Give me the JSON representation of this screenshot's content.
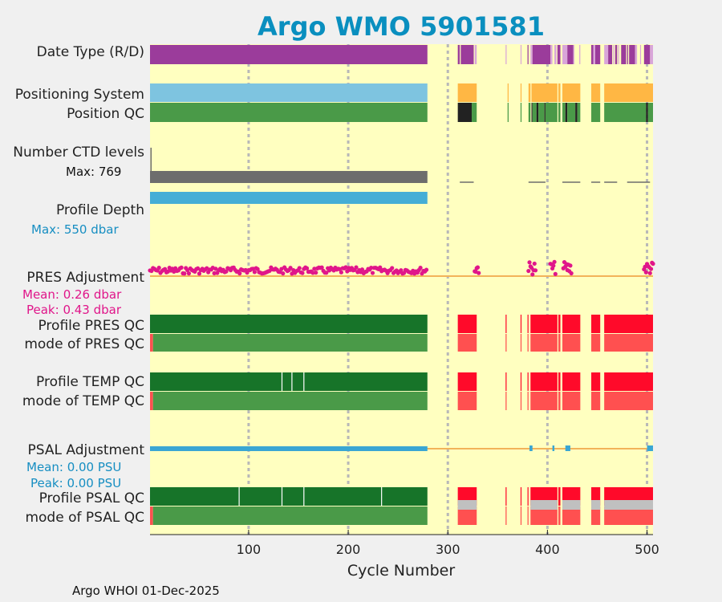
{
  "chart_data": {
    "type": "bar",
    "title": "Argo WMO 5901581",
    "xlabel": "Cycle Number",
    "xlim": [
      1,
      506
    ],
    "xticks": [
      100,
      200,
      300,
      400,
      500
    ],
    "footer": "Argo WHOI 01-Dec-2025",
    "row_labels": {
      "date_type": "Date Type (R/D)",
      "positioning_system": "Positioning System",
      "position_qc": "Position QC",
      "ctd_levels": "Number CTD levels",
      "profile_depth": "Profile Depth",
      "pres_adjustment": "PRES Adjustment",
      "profile_pres_qc": "Profile PRES QC",
      "mode_pres_qc": "mode of PRES QC",
      "profile_temp_qc": "Profile TEMP QC",
      "mode_temp_qc": "mode of TEMP QC",
      "psal_adjustment": "PSAL Adjustment",
      "profile_psal_qc": "Profile PSAL QC",
      "mode_psal_qc": "mode of PSAL QC"
    },
    "stats": {
      "ctd_max": "Max: 769",
      "depth_max": "Max:  550 dbar",
      "pres_mean": "Mean: 0.26 dbar",
      "pres_peak": "Peak: 0.43 dbar",
      "psal_mean": "Mean: 0.00 PSU",
      "psal_peak": "Peak: 0.00 PSU"
    },
    "colors": {
      "plot_bg": "#ffffc0",
      "title": "#0a8fbf",
      "purple": "#9b3c9b",
      "light_purple": "#d9a6d9",
      "light_blue": "#7ec4e0",
      "orange": "#ffb744",
      "green": "#4a9a48",
      "dark_green": "#177429",
      "black": "#222222",
      "gray": "#6d6d6d",
      "cyan": "#45aed6",
      "magenta": "#e0168a",
      "red": "#ff0a2a",
      "light_red": "#ff5050",
      "silver": "#c0c0c0",
      "line_orange": "#f2b35a",
      "psal_blue": "#3aa6d3",
      "stats_blue": "#168ec2",
      "stats_magenta": "#e0168a"
    },
    "series": [
      {
        "name": "Date Type (R/D)",
        "type": "status",
        "segments": [
          [
            1,
            279.5,
            "purple"
          ],
          [
            310,
            312,
            "purple"
          ],
          [
            313,
            326,
            "purple"
          ],
          [
            327,
            329,
            "light_purple"
          ],
          [
            358,
            359,
            "light_purple"
          ],
          [
            373,
            374,
            "light_purple"
          ],
          [
            380,
            381,
            "purple"
          ],
          [
            383,
            385,
            "light_purple"
          ],
          [
            385,
            403,
            "purple"
          ],
          [
            403,
            405,
            "light_purple"
          ],
          [
            407,
            409,
            "light_purple"
          ],
          [
            410,
            413,
            "purple"
          ],
          [
            415,
            420,
            "light_purple"
          ],
          [
            420,
            426,
            "purple"
          ],
          [
            426,
            427,
            "light_purple"
          ],
          [
            432,
            433,
            "light_purple"
          ],
          [
            444,
            446,
            "purple"
          ],
          [
            446,
            448,
            "light_purple"
          ],
          [
            448,
            453,
            "purple"
          ],
          [
            457,
            461,
            "light_purple"
          ],
          [
            461,
            465,
            "purple"
          ],
          [
            466,
            467,
            "light_purple"
          ],
          [
            468,
            470,
            "purple"
          ],
          [
            471,
            472,
            "light_purple"
          ],
          [
            474,
            479,
            "purple"
          ],
          [
            480,
            481,
            "purple"
          ],
          [
            482,
            488,
            "purple"
          ],
          [
            488,
            490,
            "light_purple"
          ],
          [
            493,
            494,
            "light_purple"
          ],
          [
            497,
            503,
            "purple"
          ],
          [
            503,
            506,
            "light_purple"
          ]
        ]
      },
      {
        "name": "Positioning System",
        "type": "status",
        "segments": [
          [
            1,
            279.5,
            "light_blue"
          ],
          [
            310,
            329,
            "orange"
          ],
          [
            360,
            361,
            "orange"
          ],
          [
            373,
            374,
            "orange"
          ],
          [
            381,
            383,
            "orange"
          ],
          [
            384,
            410,
            "orange"
          ],
          [
            411,
            413,
            "orange"
          ],
          [
            415,
            433,
            "orange"
          ],
          [
            444,
            453,
            "orange"
          ],
          [
            457,
            506,
            "orange"
          ]
        ]
      },
      {
        "name": "Position QC",
        "type": "status",
        "segments": [
          [
            1,
            279.5,
            "green"
          ],
          [
            310,
            324,
            "black"
          ],
          [
            324,
            329,
            "green"
          ],
          [
            360,
            361,
            "green"
          ],
          [
            373,
            374,
            "green"
          ],
          [
            381,
            383,
            "green"
          ],
          [
            384,
            385,
            "black"
          ],
          [
            385,
            389,
            "green"
          ],
          [
            389,
            391,
            "black"
          ],
          [
            391,
            397,
            "green"
          ],
          [
            397,
            398,
            "black"
          ],
          [
            398,
            410,
            "green"
          ],
          [
            411,
            413,
            "green"
          ],
          [
            415,
            418,
            "green"
          ],
          [
            418,
            420,
            "black"
          ],
          [
            420,
            428,
            "green"
          ],
          [
            428,
            430,
            "black"
          ],
          [
            430,
            433,
            "green"
          ],
          [
            444,
            453,
            "green"
          ],
          [
            457,
            499,
            "green"
          ],
          [
            499,
            501,
            "black"
          ],
          [
            501,
            506,
            "green"
          ]
        ]
      },
      {
        "name": "Number CTD levels",
        "type": "level",
        "max": 769,
        "typical": 150
      },
      {
        "name": "Profile Depth",
        "type": "level",
        "max": 550,
        "typical": 545
      },
      {
        "name": "PRES Adjustment",
        "type": "scatter",
        "mean": 0.26,
        "peak": 0.43
      },
      {
        "name": "Profile PRES QC",
        "type": "status",
        "segments": [
          [
            1,
            279.5,
            "dark_green"
          ],
          [
            310,
            329,
            "red"
          ],
          [
            358,
            359,
            "red"
          ],
          [
            373,
            374,
            "red"
          ],
          [
            380,
            381,
            "red"
          ],
          [
            383,
            410,
            "red"
          ],
          [
            411,
            413,
            "red"
          ],
          [
            415,
            433,
            "red"
          ],
          [
            444,
            453,
            "red"
          ],
          [
            457,
            506,
            "red"
          ]
        ]
      },
      {
        "name": "mode of PRES QC",
        "type": "status",
        "segments": [
          [
            1,
            4,
            "light_red"
          ],
          [
            4,
            279.5,
            "green"
          ],
          [
            310,
            329,
            "light_red"
          ],
          [
            358,
            359,
            "light_red"
          ],
          [
            373,
            374,
            "light_red"
          ],
          [
            380,
            381,
            "light_red"
          ],
          [
            383,
            410,
            "light_red"
          ],
          [
            411,
            413,
            "light_red"
          ],
          [
            415,
            433,
            "light_red"
          ],
          [
            444,
            453,
            "light_red"
          ],
          [
            457,
            506,
            "light_red"
          ]
        ]
      },
      {
        "name": "Profile TEMP QC",
        "type": "status",
        "segments": [
          [
            1,
            279.5,
            "dark_green"
          ],
          [
            310,
            329,
            "red"
          ],
          [
            358,
            359,
            "red"
          ],
          [
            373,
            374,
            "red"
          ],
          [
            380,
            381,
            "red"
          ],
          [
            383,
            410,
            "red"
          ],
          [
            411,
            413,
            "red"
          ],
          [
            415,
            433,
            "red"
          ],
          [
            444,
            453,
            "red"
          ],
          [
            457,
            506,
            "red"
          ]
        ]
      },
      {
        "name": "mode of TEMP QC",
        "type": "status",
        "segments": [
          [
            1,
            4,
            "light_red"
          ],
          [
            4,
            279.5,
            "green"
          ],
          [
            310,
            329,
            "light_red"
          ],
          [
            358,
            359,
            "light_red"
          ],
          [
            373,
            374,
            "light_red"
          ],
          [
            380,
            381,
            "light_red"
          ],
          [
            383,
            410,
            "light_red"
          ],
          [
            411,
            413,
            "light_red"
          ],
          [
            415,
            433,
            "light_red"
          ],
          [
            444,
            453,
            "light_red"
          ],
          [
            457,
            506,
            "light_red"
          ]
        ]
      },
      {
        "name": "PSAL Adjustment",
        "type": "line",
        "mean": 0.0,
        "peak": 0.0
      },
      {
        "name": "Profile PSAL QC",
        "type": "status",
        "segments": [
          [
            1,
            279.5,
            "dark_green"
          ],
          [
            310,
            329,
            "red"
          ],
          [
            358,
            359,
            "red"
          ],
          [
            373,
            374,
            "red"
          ],
          [
            380,
            381,
            "red"
          ],
          [
            383,
            410,
            "red"
          ],
          [
            411,
            413,
            "red"
          ],
          [
            415,
            433,
            "red"
          ],
          [
            444,
            453,
            "red"
          ],
          [
            457,
            506,
            "red"
          ]
        ]
      },
      {
        "name": "mode of PSAL QC",
        "type": "status",
        "segments": [
          [
            1,
            4,
            "light_red"
          ],
          [
            4,
            279.5,
            "green"
          ],
          [
            310,
            329,
            "light_red"
          ],
          [
            358,
            359,
            "light_red"
          ],
          [
            373,
            374,
            "light_red"
          ],
          [
            380,
            381,
            "light_red"
          ],
          [
            383,
            410,
            "light_red"
          ],
          [
            411,
            413,
            "light_red"
          ],
          [
            415,
            433,
            "light_red"
          ],
          [
            444,
            453,
            "light_red"
          ],
          [
            457,
            506,
            "light_red"
          ]
        ]
      }
    ]
  }
}
